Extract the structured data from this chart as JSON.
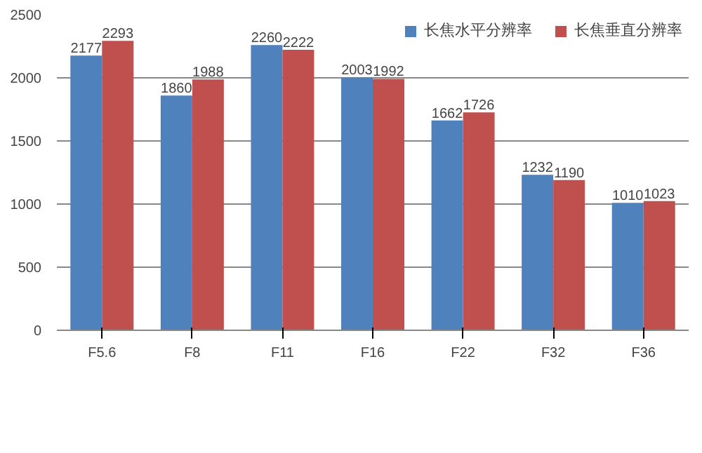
{
  "chart_data": {
    "type": "bar",
    "categories": [
      "F5.6",
      "F8",
      "F11",
      "F16",
      "F22",
      "F32",
      "F36"
    ],
    "series": [
      {
        "name": "长焦水平分辨率",
        "color": "#4f81bd",
        "values": [
          2177,
          1860,
          2260,
          2003,
          1662,
          1232,
          1010
        ]
      },
      {
        "name": "长焦垂直分辨率",
        "color": "#c0504d",
        "values": [
          2293,
          1988,
          2222,
          1992,
          1726,
          1190,
          1023
        ]
      }
    ],
    "ylim": [
      0,
      2500
    ],
    "yticks": [
      0,
      500,
      1000,
      1500,
      2000,
      2500
    ],
    "grid": "y",
    "legend": "top right",
    "data_labels": true
  }
}
